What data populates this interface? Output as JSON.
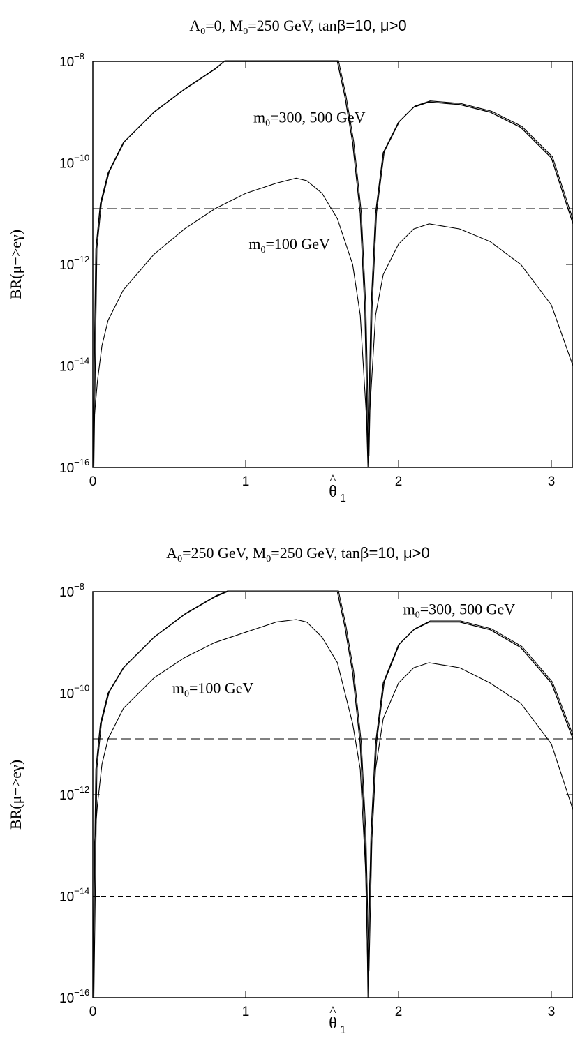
{
  "chart_data": [
    {
      "type": "line",
      "title": "A0=0, M0=250 GeV, tanβ=10, μ>0",
      "title_parts": {
        "a_pre": "A",
        "a_sub": "0",
        "a_post": "=0, M",
        "m_sub": "0",
        "m_post": "=250 GeV, tan",
        "beta": "β",
        "tail": "=10, μ>0"
      },
      "xlabel": "θ̂1",
      "xlabel_parts": {
        "hat": "^",
        "theta": "θ",
        "sub": "1"
      },
      "ylabel": "BR(μ−>eγ)",
      "xlim": [
        0,
        3.1416
      ],
      "ylim_log10": [
        -16,
        -8
      ],
      "x_ticks": [
        0,
        1,
        2,
        3
      ],
      "x_tick_labels": [
        "0",
        "1",
        "2",
        "3"
      ],
      "y_ticks_log10": [
        -16,
        -14,
        -12,
        -10,
        -8
      ],
      "y_tick_labels": [
        "−16",
        "−14",
        "−12",
        "−10",
        "−8"
      ],
      "y_tick_base": "10",
      "series": [
        {
          "style": "thick",
          "x": [
            0,
            0.02,
            0.05,
            0.1,
            0.2,
            0.4,
            0.6,
            0.8,
            0.86,
            1.6,
            1.65,
            1.7,
            1.75,
            1.78,
            1.8,
            1.82,
            1.85,
            1.9,
            2.0,
            2.1,
            2.2,
            2.4,
            2.6,
            2.8,
            3.0,
            3.1416
          ],
          "log10_y": [
            -16,
            -11.7,
            -10.8,
            -10.2,
            -9.6,
            -9.0,
            -8.55,
            -8.15,
            -8,
            -8,
            -8.7,
            -9.6,
            -11.0,
            -12.9,
            -15.8,
            -12.9,
            -11.0,
            -9.8,
            -9.2,
            -8.9,
            -8.8,
            -8.85,
            -9.0,
            -9.3,
            -9.9,
            -11.2
          ]
        },
        {
          "style": "thin",
          "x": [
            0,
            0.01,
            0.03,
            0.06,
            0.1,
            0.2,
            0.4,
            0.6,
            0.8,
            1.0,
            1.2,
            1.33,
            1.4,
            1.5,
            1.6,
            1.7,
            1.75,
            1.79,
            1.8,
            1.81,
            1.85,
            1.9,
            2.0,
            2.1,
            2.2,
            2.4,
            2.6,
            2.8,
            3.0,
            3.1416
          ],
          "log10_y": [
            -16,
            -15.0,
            -14.3,
            -13.6,
            -13.1,
            -12.5,
            -11.8,
            -11.3,
            -10.9,
            -10.6,
            -10.4,
            -10.3,
            -10.35,
            -10.6,
            -11.1,
            -12.0,
            -13.0,
            -15.0,
            -16,
            -15.0,
            -13.0,
            -12.2,
            -11.6,
            -11.3,
            -11.2,
            -11.3,
            -11.55,
            -12.0,
            -12.8,
            -14.0
          ]
        }
      ],
      "hlines": [
        {
          "log10_y": -10.9,
          "dash": "long"
        },
        {
          "log10_y": -14.0,
          "dash": "short"
        }
      ],
      "annotations": [
        {
          "sym": "m",
          "sub": "0",
          "text": "=300, 500 GeV",
          "x": 1.05,
          "log10_y": -9.2
        },
        {
          "sym": "m",
          "sub": "0",
          "text": "=100 GeV",
          "x": 1.02,
          "log10_y": -11.7
        }
      ]
    },
    {
      "type": "line",
      "title": "A0=250 GeV, M0=250 GeV, tanβ=10, μ>0",
      "title_parts": {
        "a_pre": "A",
        "a_sub": "0",
        "a_post": "=250 GeV, M",
        "m_sub": "0",
        "m_post": "=250 GeV, tan",
        "beta": "β",
        "tail": "=10, μ>0"
      },
      "xlabel": "θ̂1",
      "xlabel_parts": {
        "hat": "^",
        "theta": "θ",
        "sub": "1"
      },
      "ylabel": "BR(μ−>eγ)",
      "xlim": [
        0,
        3.1416
      ],
      "ylim_log10": [
        -16,
        -8
      ],
      "x_ticks": [
        0,
        1,
        2,
        3
      ],
      "x_tick_labels": [
        "0",
        "1",
        "2",
        "3"
      ],
      "y_ticks_log10": [
        -16,
        -14,
        -12,
        -10,
        -8
      ],
      "y_tick_labels": [
        "−16",
        "−14",
        "−12",
        "−10",
        "−8"
      ],
      "y_tick_base": "10",
      "series": [
        {
          "style": "thick",
          "x": [
            0,
            0.02,
            0.05,
            0.1,
            0.2,
            0.4,
            0.6,
            0.8,
            0.88,
            1.6,
            1.65,
            1.7,
            1.75,
            1.78,
            1.8,
            1.82,
            1.85,
            1.9,
            2.0,
            2.1,
            2.2,
            2.4,
            2.6,
            2.8,
            3.0,
            3.1416
          ],
          "log10_y": [
            -16,
            -11.5,
            -10.6,
            -10.0,
            -9.5,
            -8.9,
            -8.45,
            -8.1,
            -8,
            -8,
            -8.7,
            -9.6,
            -11.0,
            -12.8,
            -15.5,
            -12.8,
            -11.0,
            -9.8,
            -9.05,
            -8.75,
            -8.6,
            -8.6,
            -8.75,
            -9.1,
            -9.8,
            -10.9
          ]
        },
        {
          "style": "thin",
          "x": [
            0,
            0.01,
            0.03,
            0.06,
            0.1,
            0.2,
            0.4,
            0.6,
            0.8,
            1.0,
            1.2,
            1.33,
            1.4,
            1.5,
            1.6,
            1.7,
            1.75,
            1.79,
            1.8,
            1.81,
            1.85,
            1.9,
            2.0,
            2.1,
            2.2,
            2.4,
            2.6,
            2.8,
            3.0,
            3.1416
          ],
          "log10_y": [
            -16,
            -13.0,
            -12.2,
            -11.4,
            -10.9,
            -10.3,
            -9.7,
            -9.3,
            -9.0,
            -8.8,
            -8.6,
            -8.55,
            -8.6,
            -8.9,
            -9.4,
            -10.6,
            -11.5,
            -13.8,
            -16,
            -13.8,
            -11.5,
            -10.5,
            -9.8,
            -9.5,
            -9.4,
            -9.5,
            -9.8,
            -10.2,
            -11.0,
            -12.3
          ]
        }
      ],
      "hlines": [
        {
          "log10_y": -10.9,
          "dash": "long"
        },
        {
          "log10_y": -14.0,
          "dash": "short"
        }
      ],
      "annotations": [
        {
          "sym": "m",
          "sub": "0",
          "text": "=300, 500 GeV",
          "x": 2.03,
          "log10_y": -8.45
        },
        {
          "sym": "m",
          "sub": "0",
          "text": "=100 GeV",
          "x": 0.52,
          "log10_y": -10.0
        }
      ]
    }
  ]
}
